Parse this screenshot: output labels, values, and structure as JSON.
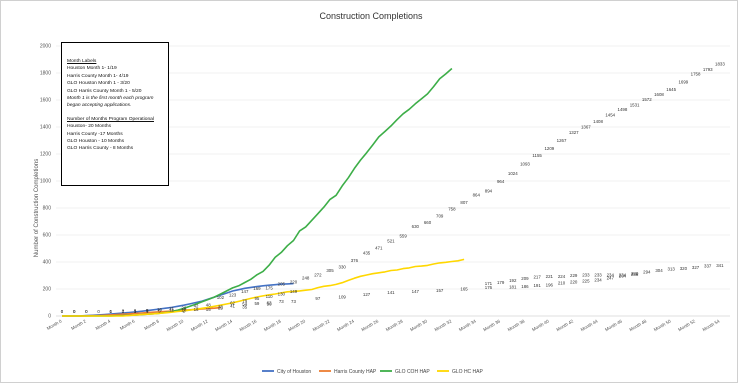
{
  "chart_data": {
    "type": "line",
    "title": "Construction Completions",
    "ylabel": "Number of Construction Completions",
    "xlabel": "",
    "ylim": [
      0,
      2000
    ],
    "yticks": [
      0,
      200,
      400,
      600,
      800,
      1000,
      1200,
      1400,
      1600,
      1800,
      2000
    ],
    "x_tick_labels": [
      "Month 0",
      "Month 2",
      "Month 4",
      "Month 6",
      "Month 8",
      "Month 10",
      "Month 12",
      "Month 14",
      "Month 16",
      "Month 18",
      "Month 20",
      "Month 22",
      "Month 24",
      "Month 26",
      "Month 28",
      "Month 30",
      "Month 32",
      "Month 34",
      "Month 36",
      "Month 38",
      "Month 40",
      "Month 42",
      "Month 44",
      "Month 46",
      "Month 48",
      "Month 50",
      "Month 52",
      "Month 54"
    ],
    "grid": true,
    "legend_position": "bottom",
    "series": [
      {
        "name": "City of Houston",
        "color": "#4472C4",
        "values": [
          0,
          0,
          0,
          1,
          3,
          5,
          8,
          11,
          14,
          18,
          22,
          26,
          30,
          35,
          40,
          46,
          52,
          58,
          64,
          72,
          80,
          90,
          100,
          110,
          125,
          140,
          155,
          170,
          185,
          195,
          205,
          212,
          218,
          224,
          228,
          232,
          236,
          238,
          240
        ]
      },
      {
        "name": "Harris County HAP",
        "color": "#ED7D31",
        "values": [
          0,
          0,
          0,
          0,
          1,
          2,
          3,
          5,
          8,
          10,
          13,
          16,
          19,
          22,
          25,
          28,
          31,
          34,
          37,
          40,
          43,
          46,
          49,
          52,
          55,
          58,
          62
        ]
      },
      {
        "name": "GLO COH HAP",
        "color": "#3DAE48",
        "values": [
          0,
          0,
          0,
          0,
          0,
          0,
          0,
          0,
          0,
          2,
          3,
          5,
          7,
          10,
          13,
          16,
          20,
          26,
          33,
          43,
          56,
          72,
          88,
          105,
          122,
          140,
          162,
          185,
          208,
          224,
          248,
          272,
          305,
          330,
          376,
          435,
          471,
          521,
          559,
          630,
          660,
          709,
          758,
          807,
          864,
          894,
          964,
          1024,
          1093,
          1155,
          1209,
          1267,
          1327,
          1367,
          1408,
          1454,
          1498,
          1531,
          1572,
          1608,
          1645,
          1699,
          1758,
          1793,
          1833
        ]
      },
      {
        "name": "GLO HC HAP",
        "color": "#FFD700",
        "values": [
          0,
          0,
          0,
          0,
          0,
          0,
          0,
          0,
          0,
          0,
          0,
          4,
          7,
          10,
          13,
          16,
          20,
          24,
          28,
          33,
          38,
          44,
          50,
          57,
          64,
          72,
          80,
          89,
          98,
          108,
          119,
          130,
          141,
          149,
          157,
          163,
          171,
          179,
          182,
          186,
          191,
          196,
          210,
          220,
          225,
          234,
          247,
          264,
          280,
          294,
          304,
          313,
          320,
          327,
          337,
          341,
          351,
          356,
          367,
          370,
          375,
          385,
          393,
          398,
          404,
          409,
          419
        ]
      }
    ],
    "data_labels": [
      {
        "series": "City of Houston",
        "items": [
          [
            0,
            "0"
          ],
          [
            2,
            "0"
          ],
          [
            4,
            "0"
          ],
          [
            10,
            "0"
          ],
          [
            12,
            "1"
          ],
          [
            14,
            "1"
          ],
          [
            20,
            "2"
          ],
          [
            28,
            "62"
          ],
          [
            30,
            "79"
          ],
          [
            32,
            "95"
          ],
          [
            34,
            "110"
          ],
          [
            36,
            "130"
          ],
          [
            38,
            "149"
          ]
        ]
      },
      {
        "series": "Harris County HAP",
        "items": [
          [
            0,
            "0"
          ],
          [
            2,
            "0"
          ],
          [
            4,
            "0"
          ],
          [
            8,
            "1"
          ],
          [
            12,
            "3"
          ],
          [
            16,
            "5"
          ],
          [
            20,
            "10"
          ],
          [
            24,
            "15"
          ],
          [
            26,
            "33"
          ],
          [
            28,
            "41"
          ],
          [
            30,
            "54"
          ],
          [
            32,
            "59"
          ],
          [
            34,
            "63"
          ],
          [
            36,
            "73"
          ]
        ]
      },
      {
        "series": "GLO COH HAP",
        "items": [
          [
            6,
            "0"
          ],
          [
            8,
            "0"
          ],
          [
            10,
            "3"
          ],
          [
            12,
            "5"
          ],
          [
            14,
            "8"
          ],
          [
            16,
            "16"
          ],
          [
            18,
            "21"
          ],
          [
            20,
            "26"
          ],
          [
            22,
            "42"
          ],
          [
            24,
            "48"
          ],
          [
            26,
            "102"
          ],
          [
            28,
            "123"
          ],
          [
            30,
            "147"
          ],
          [
            32,
            "169"
          ],
          [
            34,
            "175"
          ],
          [
            36,
            "205"
          ],
          [
            38,
            "220"
          ],
          [
            40,
            "248"
          ],
          [
            42,
            "272"
          ],
          [
            44,
            "305"
          ],
          [
            46,
            "330"
          ],
          [
            48,
            "376"
          ],
          [
            50,
            "435"
          ],
          [
            52,
            "471"
          ],
          [
            54,
            "521"
          ],
          [
            56,
            "559"
          ],
          [
            58,
            "630"
          ],
          [
            60,
            "660"
          ],
          [
            62,
            "709"
          ],
          [
            64,
            "758"
          ],
          [
            66,
            "807"
          ],
          [
            68,
            "864"
          ],
          [
            70,
            "894"
          ],
          [
            72,
            "964"
          ],
          [
            74,
            "1024"
          ],
          [
            76,
            "1093"
          ],
          [
            78,
            "1155"
          ],
          [
            80,
            "1209"
          ],
          [
            82,
            "1267"
          ],
          [
            84,
            "1327"
          ],
          [
            86,
            "1367"
          ],
          [
            88,
            "1408"
          ],
          [
            90,
            "1454"
          ],
          [
            92,
            "1498"
          ],
          [
            94,
            "1531"
          ],
          [
            96,
            "1572"
          ],
          [
            98,
            "1608"
          ],
          [
            100,
            "1645"
          ],
          [
            102,
            "1699"
          ],
          [
            104,
            "1758"
          ],
          [
            106,
            "1793"
          ],
          [
            108,
            "1833"
          ]
        ]
      },
      {
        "series": "GLO HC HAP",
        "items": [
          [
            14,
            "9"
          ],
          [
            18,
            "11"
          ],
          [
            22,
            "16"
          ],
          [
            26,
            "25"
          ],
          [
            30,
            "35"
          ],
          [
            34,
            "56"
          ],
          [
            38,
            "73"
          ],
          [
            42,
            "97"
          ],
          [
            46,
            "109"
          ],
          [
            50,
            "127"
          ],
          [
            54,
            "141"
          ],
          [
            58,
            "147"
          ],
          [
            62,
            "157"
          ],
          [
            66,
            "165"
          ],
          [
            70,
            "176"
          ],
          [
            74,
            "181"
          ],
          [
            76,
            "186"
          ],
          [
            78,
            "191"
          ],
          [
            80,
            "196"
          ],
          [
            82,
            "210"
          ],
          [
            84,
            "220"
          ],
          [
            86,
            "225"
          ],
          [
            88,
            "234"
          ],
          [
            90,
            "247"
          ],
          [
            92,
            "264"
          ],
          [
            94,
            "280"
          ],
          [
            96,
            "294"
          ],
          [
            98,
            "304"
          ],
          [
            100,
            "313"
          ],
          [
            102,
            "320"
          ],
          [
            104,
            "327"
          ],
          [
            106,
            "337"
          ],
          [
            108,
            "341"
          ]
        ]
      },
      {
        "series": "GLO COH HAP (plateau)",
        "items": [
          [
            70,
            "171"
          ],
          [
            72,
            "179"
          ],
          [
            74,
            "192"
          ],
          [
            76,
            "209"
          ],
          [
            78,
            "217"
          ],
          [
            80,
            "221"
          ],
          [
            82,
            "224"
          ],
          [
            84,
            "229"
          ],
          [
            86,
            "233"
          ],
          [
            88,
            "233"
          ],
          [
            90,
            "234"
          ],
          [
            92,
            "234"
          ],
          [
            94,
            "238"
          ]
        ]
      }
    ]
  },
  "note_box": {
    "lines": [
      {
        "text": "Month Labels",
        "style": "u"
      },
      {
        "text": "Houston Month 1- 1/19",
        "style": ""
      },
      {
        "text": "Harris County Month 1- 4/19",
        "style": ""
      },
      {
        "text": "GLO Houston Month 1 - 3/20",
        "style": ""
      },
      {
        "text": "GLO Harris County Month 1 - 5/20",
        "style": ""
      },
      {
        "text": "Month 1 is the first month each program",
        "style": "i"
      },
      {
        "text": "began accepting applications.",
        "style": "i"
      },
      {
        "text": "",
        "style": "gap"
      },
      {
        "text": "Number of Months Program Operational",
        "style": "u"
      },
      {
        "text": "Houston- 20 Months",
        "style": ""
      },
      {
        "text": "Harris County -17 Months",
        "style": ""
      },
      {
        "text": "GLO Houston - 10 Months",
        "style": ""
      },
      {
        "text": "GLO Harris County - 8 Months",
        "style": ""
      }
    ]
  }
}
